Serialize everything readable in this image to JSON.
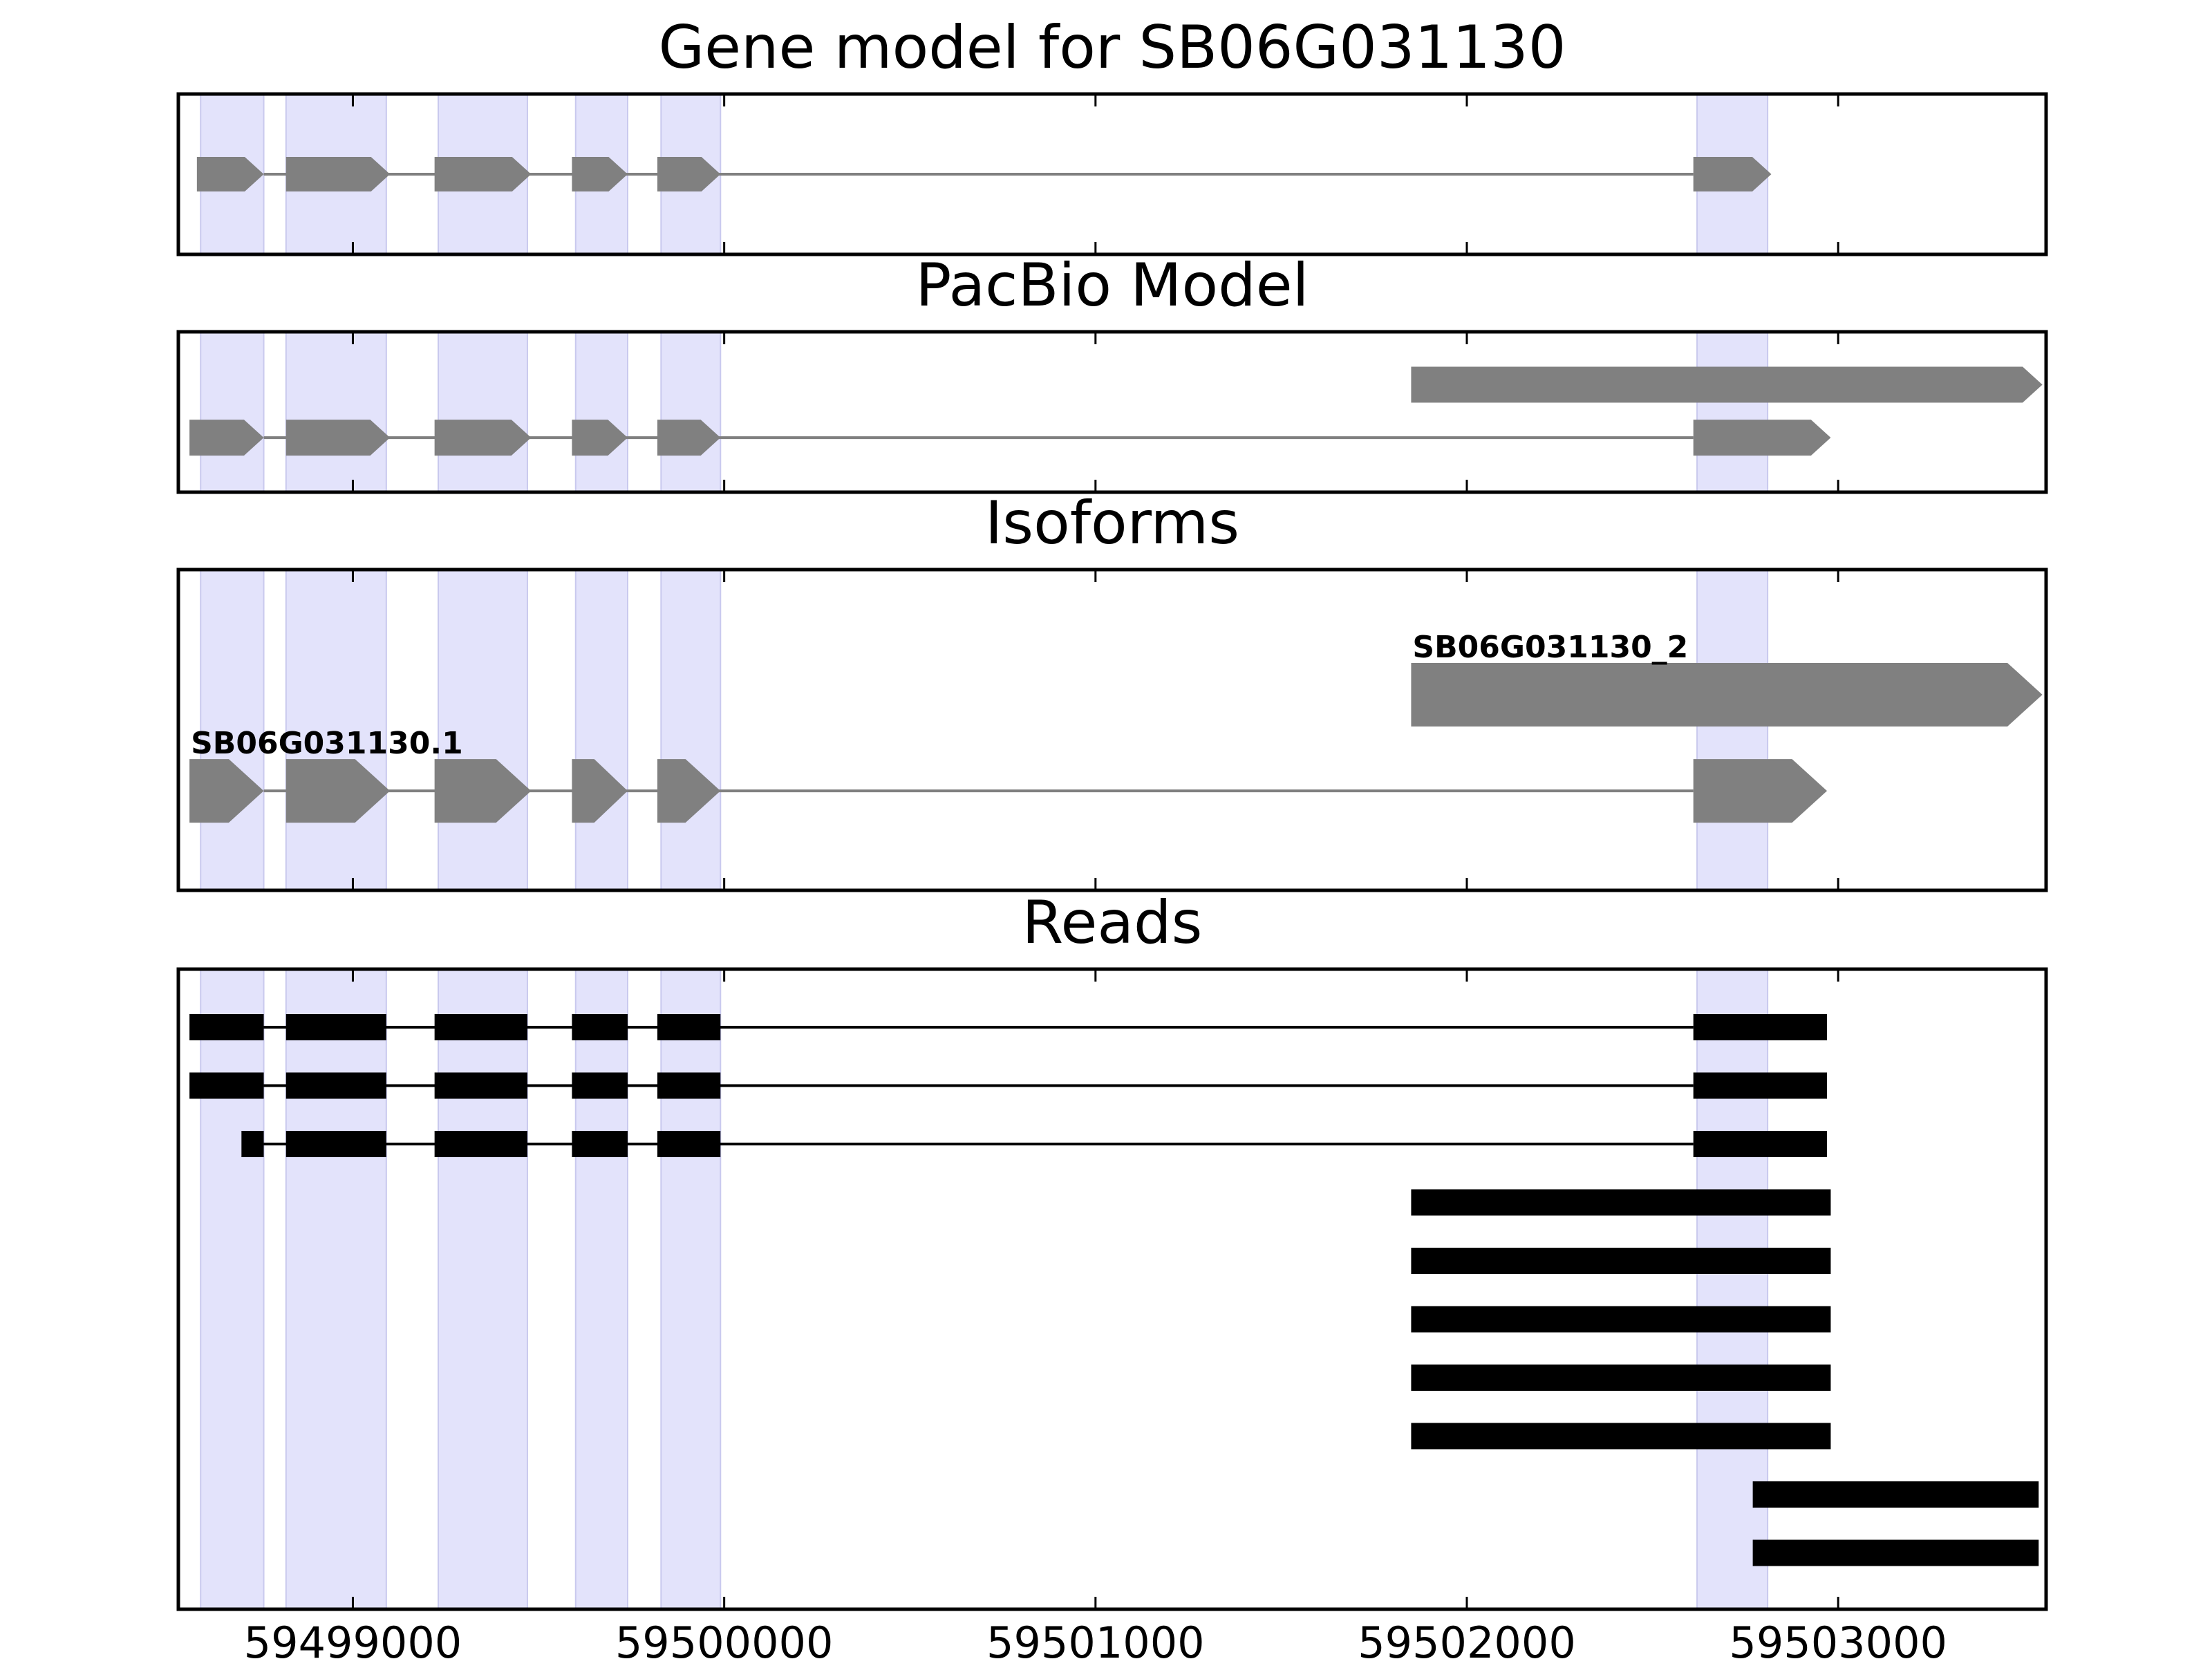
{
  "chart_data": {
    "type": "gene_track",
    "xlim": [
      59498530,
      59503560
    ],
    "xticks": [
      59499000,
      59500000,
      59501000,
      59502000,
      59503000
    ],
    "highlight_color": "#e3e3fb",
    "feature_color": "#808080",
    "read_color": "#000000",
    "exon_highlights": [
      [
        59498590,
        59498760
      ],
      [
        59498820,
        59499090
      ],
      [
        59499230,
        59499470
      ],
      [
        59499600,
        59499740
      ],
      [
        59499830,
        59499990
      ],
      [
        59502620,
        59502810
      ]
    ],
    "panels": [
      {
        "title": "Gene model for SB06G031130",
        "kind": "model",
        "transcripts": [
          {
            "label": "",
            "exons": [
              [
                59498580,
                59498760
              ],
              [
                59498820,
                59499100
              ],
              [
                59499220,
                59499480
              ],
              [
                59499590,
                59499740
              ],
              [
                59499820,
                59499990
              ],
              [
                59502610,
                59502820
              ]
            ]
          }
        ]
      },
      {
        "title": "PacBio Model",
        "kind": "model",
        "transcripts": [
          {
            "label": "",
            "exons": [
              [
                59501850,
                59503550
              ]
            ]
          },
          {
            "label": "",
            "exons": [
              [
                59498560,
                59498760
              ],
              [
                59498820,
                59499100
              ],
              [
                59499220,
                59499480
              ],
              [
                59499590,
                59499740
              ],
              [
                59499820,
                59499990
              ],
              [
                59502610,
                59502980
              ]
            ]
          }
        ]
      },
      {
        "title": "Isoforms",
        "kind": "model",
        "transcripts": [
          {
            "label": "SB06G031130_2",
            "exons": [
              [
                59501850,
                59503550
              ]
            ]
          },
          {
            "label": "SB06G031130.1",
            "exons": [
              [
                59498560,
                59498760
              ],
              [
                59498820,
                59499100
              ],
              [
                59499220,
                59499480
              ],
              [
                59499590,
                59499740
              ],
              [
                59499820,
                59499990
              ],
              [
                59502610,
                59502970
              ]
            ]
          }
        ]
      },
      {
        "title": "Reads",
        "kind": "reads",
        "transcripts": [
          {
            "label": "",
            "exons": [
              [
                59498560,
                59498760
              ],
              [
                59498820,
                59499090
              ],
              [
                59499220,
                59499470
              ],
              [
                59499590,
                59499740
              ],
              [
                59499820,
                59499990
              ],
              [
                59502610,
                59502970
              ]
            ]
          },
          {
            "label": "",
            "exons": [
              [
                59498560,
                59498760
              ],
              [
                59498820,
                59499090
              ],
              [
                59499220,
                59499470
              ],
              [
                59499590,
                59499740
              ],
              [
                59499820,
                59499990
              ],
              [
                59502610,
                59502970
              ]
            ]
          },
          {
            "label": "",
            "exons": [
              [
                59498700,
                59498760
              ],
              [
                59498820,
                59499090
              ],
              [
                59499220,
                59499470
              ],
              [
                59499590,
                59499740
              ],
              [
                59499820,
                59499990
              ],
              [
                59502610,
                59502970
              ]
            ]
          },
          {
            "label": "",
            "exons": [
              [
                59501850,
                59502980
              ]
            ]
          },
          {
            "label": "",
            "exons": [
              [
                59501850,
                59502980
              ]
            ]
          },
          {
            "label": "",
            "exons": [
              [
                59501850,
                59502980
              ]
            ]
          },
          {
            "label": "",
            "exons": [
              [
                59501850,
                59502980
              ]
            ]
          },
          {
            "label": "",
            "exons": [
              [
                59501850,
                59502980
              ]
            ]
          },
          {
            "label": "",
            "exons": [
              [
                59502770,
                59503540
              ]
            ]
          },
          {
            "label": "",
            "exons": [
              [
                59502770,
                59503540
              ]
            ]
          }
        ]
      }
    ]
  }
}
